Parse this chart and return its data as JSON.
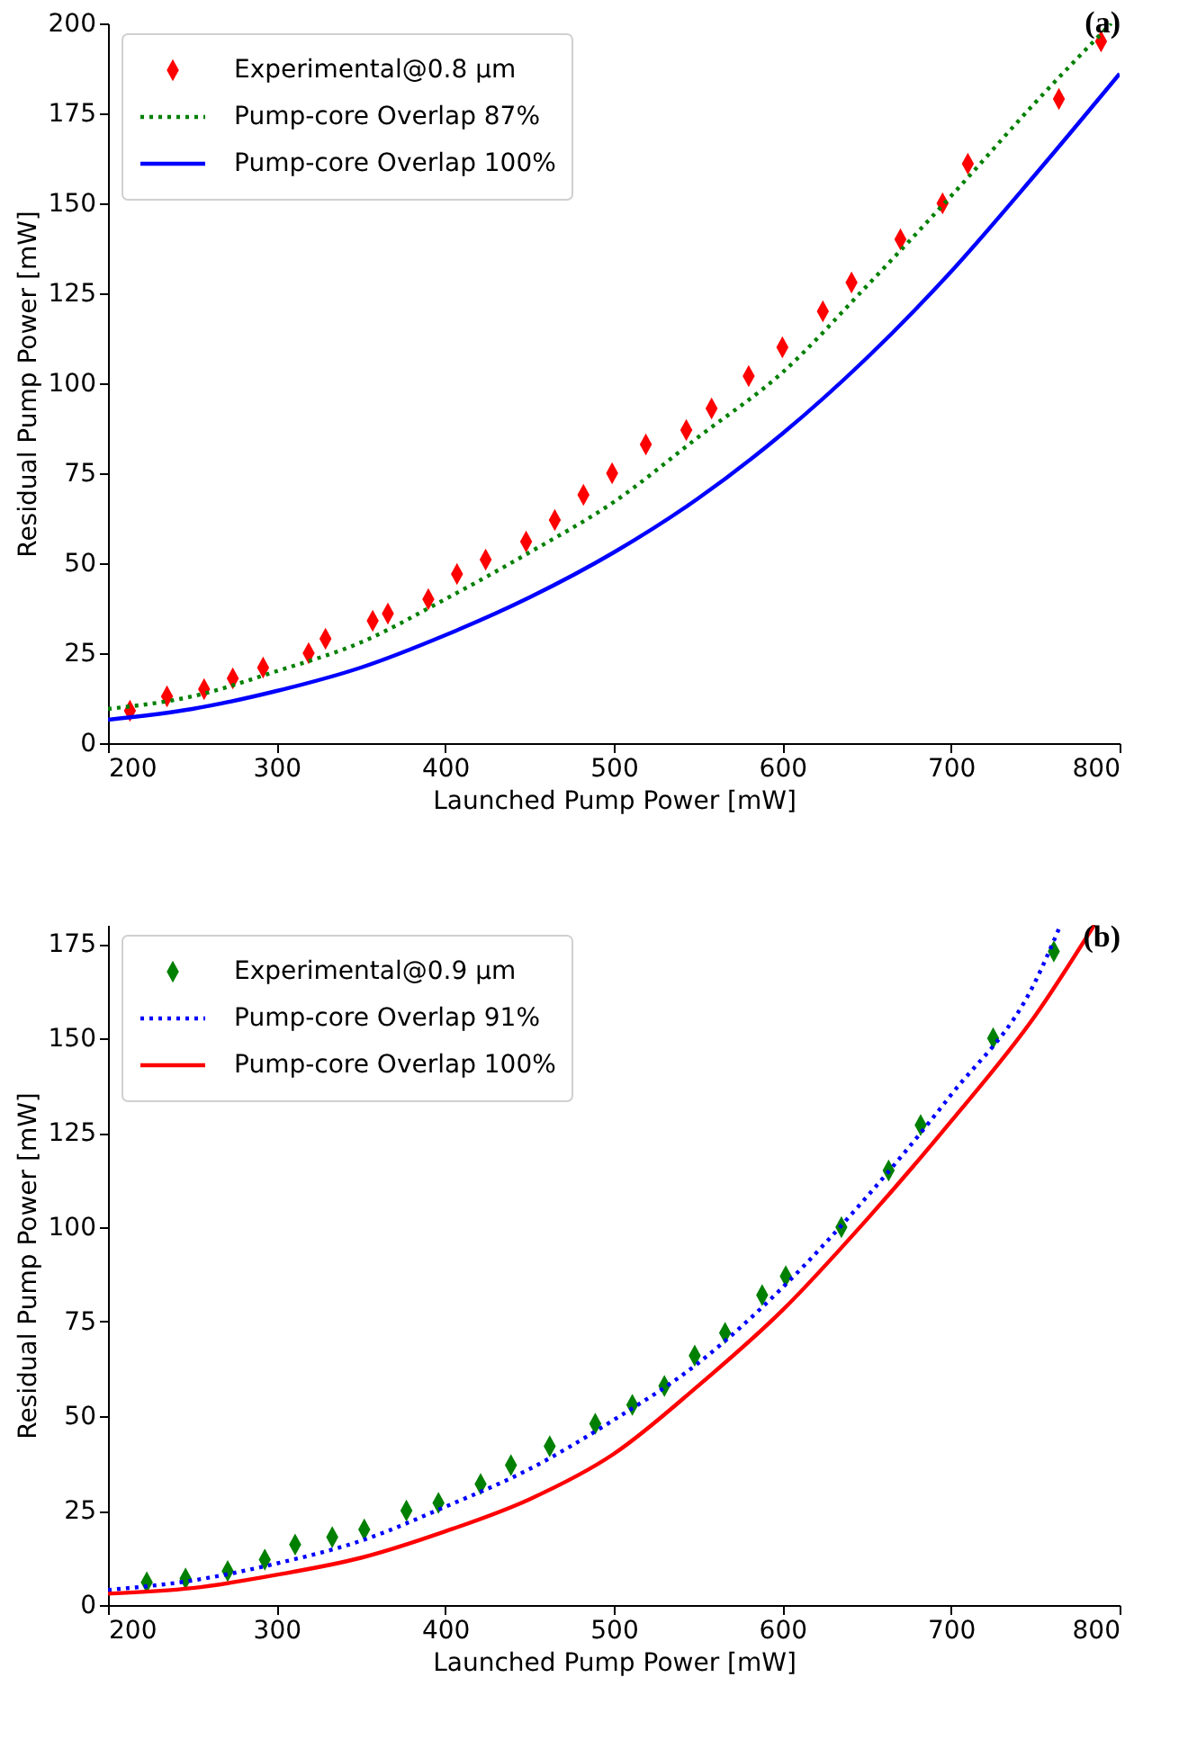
{
  "chart_data": [
    {
      "type": "line",
      "title": "(a)",
      "xlabel": "Launched Pump Power [mW]",
      "ylabel": "Residual Pump Power [mW]",
      "xlim": [
        200,
        800
      ],
      "ylim": [
        0,
        200
      ],
      "xticks": [
        200,
        300,
        400,
        500,
        600,
        700,
        800
      ],
      "yticks": [
        0,
        25,
        50,
        75,
        100,
        125,
        150,
        175,
        200
      ],
      "grid": false,
      "legend": "top left",
      "series": [
        {
          "name": "Experimental@0.8 µm",
          "type": "scatter",
          "marker": "diamond",
          "color": "#ff0000",
          "x": [
            213,
            235,
            257,
            274,
            292,
            319,
            329,
            357,
            366,
            390,
            407,
            424,
            448,
            465,
            482,
            499,
            519,
            543,
            558,
            580,
            600,
            624,
            641,
            670,
            695,
            710,
            764,
            789
          ],
          "values": [
            9,
            13,
            15,
            18,
            21,
            25,
            29,
            34,
            36,
            40,
            47,
            51,
            56,
            62,
            69,
            75,
            83,
            87,
            93,
            102,
            110,
            120,
            128,
            140,
            150,
            161,
            179,
            195
          ]
        },
        {
          "name": "Pump-core Overlap 87%",
          "line_style": "dotted",
          "color": "#008000",
          "x": [
            200,
            250,
            300,
            350,
            400,
            450,
            500,
            550,
            600,
            650,
            700,
            750,
            795
          ],
          "values": [
            9.5,
            13,
            20,
            28,
            40,
            53,
            67,
            85,
            103,
            127,
            152,
            178,
            200
          ]
        },
        {
          "name": "Pump-core Overlap 100%",
          "line_style": "solid",
          "color": "#0000ff",
          "x": [
            200,
            250,
            300,
            350,
            400,
            450,
            500,
            550,
            600,
            650,
            700,
            750,
            800
          ],
          "values": [
            6.5,
            9.5,
            14.5,
            21,
            30,
            40.5,
            53,
            68,
            86,
            107,
            131,
            158,
            186
          ]
        }
      ]
    },
    {
      "type": "line",
      "title": "(b)",
      "xlabel": "Launched Pump Power [mW]",
      "ylabel": "Residual Pump Power [mW]",
      "xlim": [
        200,
        800
      ],
      "ylim": [
        0,
        180
      ],
      "xticks": [
        200,
        300,
        400,
        500,
        600,
        700,
        800
      ],
      "yticks": [
        0,
        25,
        50,
        75,
        100,
        125,
        150,
        175
      ],
      "grid": false,
      "legend": "top left",
      "series": [
        {
          "name": "Experimental@0.9 µm",
          "type": "scatter",
          "marker": "diamond",
          "color": "#008000",
          "x": [
            223,
            246,
            271,
            293,
            311,
            333,
            352,
            377,
            396,
            421,
            439,
            462,
            489,
            511,
            530,
            548,
            566,
            588,
            602,
            635,
            663,
            682,
            725,
            761
          ],
          "values": [
            6,
            7,
            9,
            12,
            16,
            18,
            20,
            25,
            27,
            32,
            37,
            42,
            48,
            53,
            58,
            66,
            72,
            82,
            87,
            100,
            115,
            127,
            150,
            173
          ]
        },
        {
          "name": "Pump-core Overlap 91%",
          "line_style": "dotted",
          "color": "#0000ff",
          "x": [
            200,
            250,
            300,
            350,
            400,
            450,
            500,
            550,
            600,
            650,
            700,
            750,
            765
          ],
          "values": [
            4,
            6.5,
            11,
            17,
            26,
            36,
            49,
            64,
            84,
            108,
            135,
            165,
            180
          ]
        },
        {
          "name": "Pump-core Overlap 100%",
          "line_style": "solid",
          "color": "#ff0000",
          "x": [
            200,
            250,
            300,
            350,
            400,
            450,
            500,
            550,
            600,
            650,
            700,
            750,
            785
          ],
          "values": [
            3,
            4.5,
            8,
            12.5,
            19.5,
            28,
            40,
            58,
            78,
            102,
            128,
            156,
            180
          ]
        }
      ]
    }
  ]
}
